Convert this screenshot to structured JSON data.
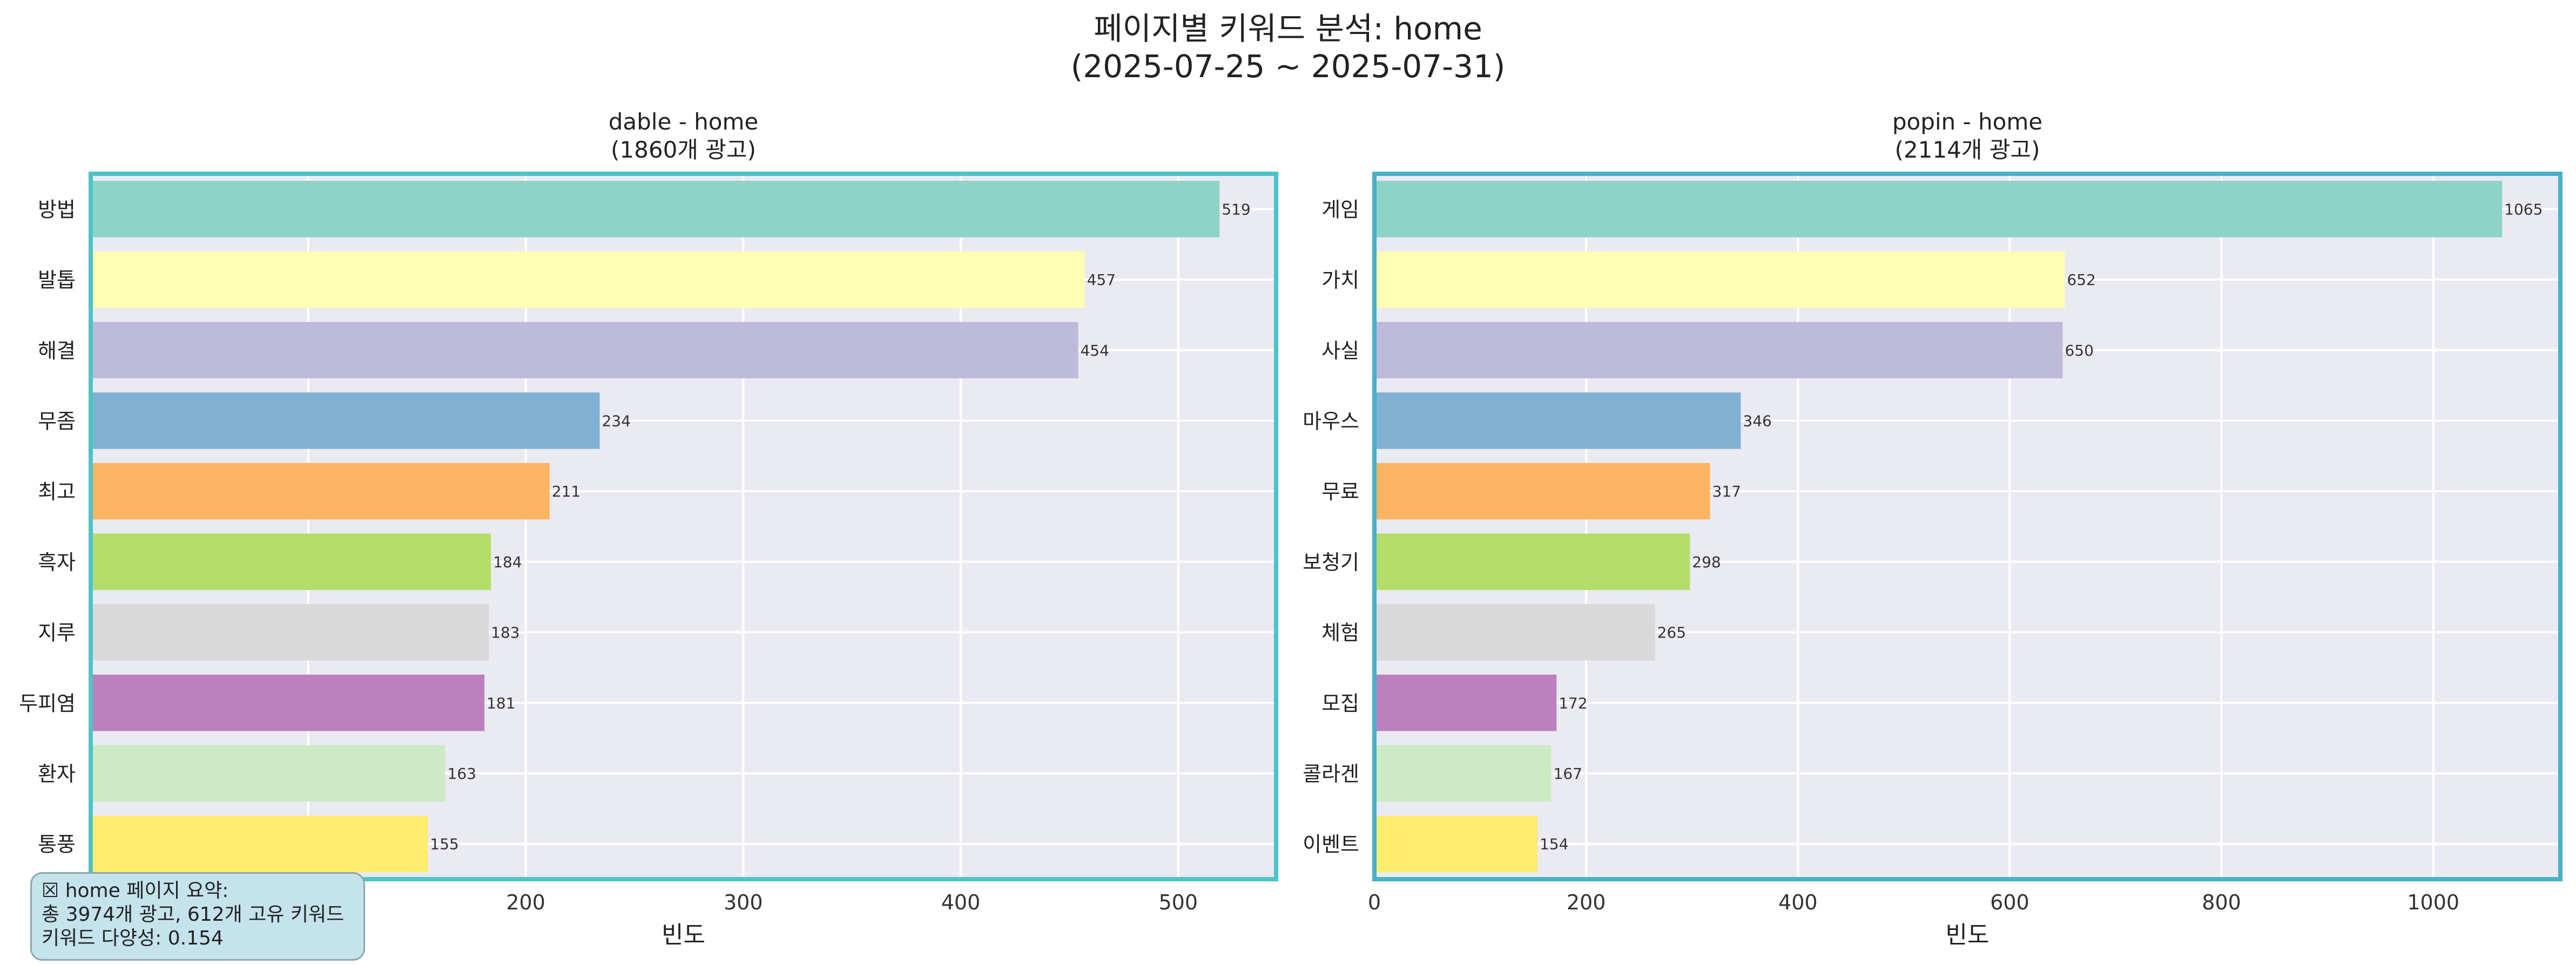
{
  "title_line1": "페이지별 키워드 분석: home",
  "title_line2": "(2025-07-25 ~ 2025-07-31)",
  "chart_data": [
    {
      "type": "bar",
      "orientation": "horizontal",
      "title": "dable - home",
      "subtitle": "(1860개 광고)",
      "xlabel": "빈도",
      "ylabel": "",
      "xlim": [
        0,
        545
      ],
      "xticks": [
        100,
        200,
        300,
        400,
        500
      ],
      "grid": true,
      "categories": [
        "방법",
        "발톱",
        "해결",
        "무좀",
        "최고",
        "흑자",
        "지루",
        "두피염",
        "환자",
        "통풍"
      ],
      "values": [
        519,
        457,
        454,
        234,
        211,
        184,
        183,
        181,
        163,
        155
      ]
    },
    {
      "type": "bar",
      "orientation": "horizontal",
      "title": "popin - home",
      "subtitle": "(2114개 광고)",
      "xlabel": "빈도",
      "ylabel": "",
      "xlim": [
        0,
        1120
      ],
      "xticks": [
        0,
        200,
        400,
        600,
        800,
        1000
      ],
      "grid": true,
      "categories": [
        "게임",
        "가치",
        "사실",
        "마우스",
        "무료",
        "보청기",
        "체험",
        "모집",
        "콜라겐",
        "이벤트"
      ],
      "values": [
        1065,
        652,
        650,
        346,
        317,
        298,
        265,
        172,
        167,
        154
      ]
    }
  ],
  "colors": {
    "bars": [
      "#8dd3c7",
      "#ffffb3",
      "#bebada",
      "#80b1d3",
      "#fdb462",
      "#b3de69",
      "#d9d9d9",
      "#bc80bd",
      "#ccebc5",
      "#ffed6f"
    ],
    "plot_bg": "#eaeaf2",
    "frame_left": "#4fc3c7",
    "frame_right": "#4ab0c9",
    "summary_bg": "#c5e3ec"
  },
  "summary": {
    "icon": "chart-emoji-icon",
    "line1": "☒ home 페이지 요약:",
    "line2": "총 3974개 광고, 612개 고유 키워드",
    "line3": "키워드 다양성: 0.154"
  }
}
